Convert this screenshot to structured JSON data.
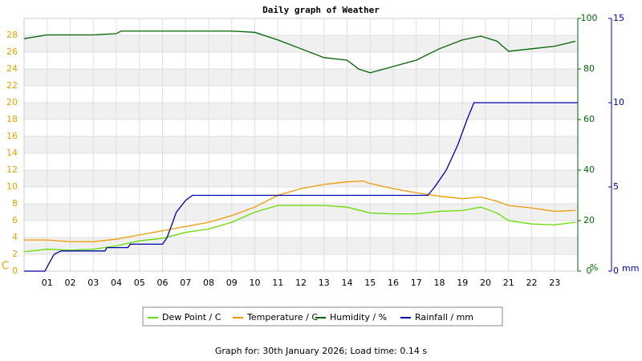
{
  "chart_data": {
    "type": "line",
    "title": "Daily graph of Weather",
    "footer": "Graph for: 30th January 2026; Load time: 0.14 s",
    "xlim": [
      0,
      24
    ],
    "xticks": [
      {
        "value": 1,
        "label": "01"
      },
      {
        "value": 2,
        "label": "02"
      },
      {
        "value": 3,
        "label": "03"
      },
      {
        "value": 4,
        "label": "04"
      },
      {
        "value": 5,
        "label": "05"
      },
      {
        "value": 6,
        "label": "06"
      },
      {
        "value": 7,
        "label": "07"
      },
      {
        "value": 8,
        "label": "08"
      },
      {
        "value": 9,
        "label": "09"
      },
      10,
      11,
      12,
      13,
      14,
      15,
      16,
      17,
      18,
      19,
      20,
      21,
      22,
      23
    ],
    "ylim": [
      0,
      30
    ],
    "yticks": [
      0,
      2,
      4,
      6,
      8,
      10,
      12,
      14,
      16,
      18,
      20,
      22,
      24,
      26,
      28
    ],
    "y_label": "C",
    "y_color": "#e8a000",
    "y2lim": [
      0,
      100
    ],
    "y2ticks": [
      0,
      20,
      40,
      60,
      80,
      100
    ],
    "y2_label": "%",
    "y2_color": "#006600",
    "y3lim": [
      0,
      15
    ],
    "y3ticks": [
      0,
      5,
      10,
      15
    ],
    "y3_label": "mm",
    "y3_color": "#0000aa",
    "grid": true,
    "series": [
      {
        "name": "Dew Point / C",
        "color": "#66dd00",
        "axis": "y",
        "x": [
          0,
          1,
          2,
          3,
          4,
          5,
          6,
          7,
          8,
          9,
          10,
          11,
          12,
          13,
          14,
          15,
          16,
          17,
          18,
          19,
          19.8,
          20.5,
          21,
          22,
          23,
          23.9
        ],
        "values": [
          2.3,
          2.6,
          2.5,
          2.6,
          3.0,
          3.6,
          3.9,
          4.6,
          5.0,
          5.8,
          7.0,
          7.8,
          7.8,
          7.8,
          7.6,
          6.9,
          6.8,
          6.8,
          7.1,
          7.2,
          7.6,
          6.9,
          6.0,
          5.6,
          5.5,
          5.8
        ]
      },
      {
        "name": "Temperature / C",
        "color": "#ee9900",
        "axis": "y",
        "x": [
          0,
          1,
          2,
          3,
          4,
          5,
          6,
          7,
          8,
          9,
          10,
          11,
          12,
          13,
          14,
          14.7,
          15,
          16,
          17,
          18,
          19,
          19.8,
          20.5,
          21,
          22,
          23,
          23.9
        ],
        "values": [
          3.7,
          3.7,
          3.5,
          3.5,
          3.8,
          4.3,
          4.8,
          5.3,
          5.8,
          6.6,
          7.6,
          9.0,
          9.8,
          10.3,
          10.6,
          10.7,
          10.4,
          9.8,
          9.3,
          8.9,
          8.6,
          8.8,
          8.3,
          7.8,
          7.5,
          7.1,
          7.2
        ]
      },
      {
        "name": "Humidity / %",
        "color": "#006600",
        "axis": "y2",
        "x": [
          0,
          1,
          3,
          4,
          4.2,
          9,
          10,
          11,
          12,
          13,
          14,
          14.5,
          15,
          16,
          17,
          18,
          19,
          19.8,
          20.5,
          21,
          22,
          23,
          23.9
        ],
        "values": [
          92,
          93.5,
          93.5,
          94,
          95,
          95,
          94.5,
          91.5,
          88,
          84.5,
          83.5,
          80,
          78.5,
          81,
          83.5,
          88,
          91.5,
          93,
          91,
          87,
          88,
          89,
          91
        ]
      },
      {
        "name": "Rainfall / mm",
        "color": "#0000aa",
        "axis": "y3",
        "x": [
          0,
          0.9,
          1.3,
          1.6,
          3.5,
          3.6,
          4.5,
          4.6,
          6,
          6.2,
          6.6,
          7,
          7.3,
          17.5,
          17.8,
          18.3,
          18.8,
          19.2,
          19.5,
          24
        ],
        "values": [
          0,
          0,
          1.0,
          1.2,
          1.2,
          1.4,
          1.4,
          1.6,
          1.6,
          2,
          3.5,
          4.2,
          4.5,
          4.5,
          5,
          6,
          7.5,
          9,
          10,
          10
        ]
      }
    ]
  }
}
